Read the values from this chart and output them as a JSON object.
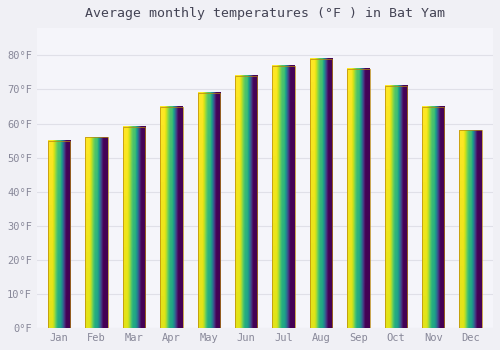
{
  "title": "Average monthly temperatures (°F ) in Bat Yam",
  "months": [
    "Jan",
    "Feb",
    "Mar",
    "Apr",
    "May",
    "Jun",
    "Jul",
    "Aug",
    "Sep",
    "Oct",
    "Nov",
    "Dec"
  ],
  "values": [
    55,
    56,
    59,
    65,
    69,
    74,
    77,
    79,
    76,
    71,
    65,
    58
  ],
  "bar_color_top": "#FFC125",
  "bar_color_bottom": "#F5A623",
  "bar_edge_color": "#B8860B",
  "background_color": "#F0F0F5",
  "plot_bg_color": "#F5F5FA",
  "grid_color": "#E0E0E8",
  "tick_label_color": "#888899",
  "title_color": "#444455",
  "ylim": [
    0,
    88
  ],
  "yticks": [
    0,
    10,
    20,
    30,
    40,
    50,
    60,
    70,
    80
  ],
  "ytick_labels": [
    "0°F",
    "10°F",
    "20°F",
    "30°F",
    "40°F",
    "50°F",
    "60°F",
    "70°F",
    "80°F"
  ],
  "title_fontsize": 9.5,
  "tick_fontsize": 7.5,
  "bar_width": 0.6
}
